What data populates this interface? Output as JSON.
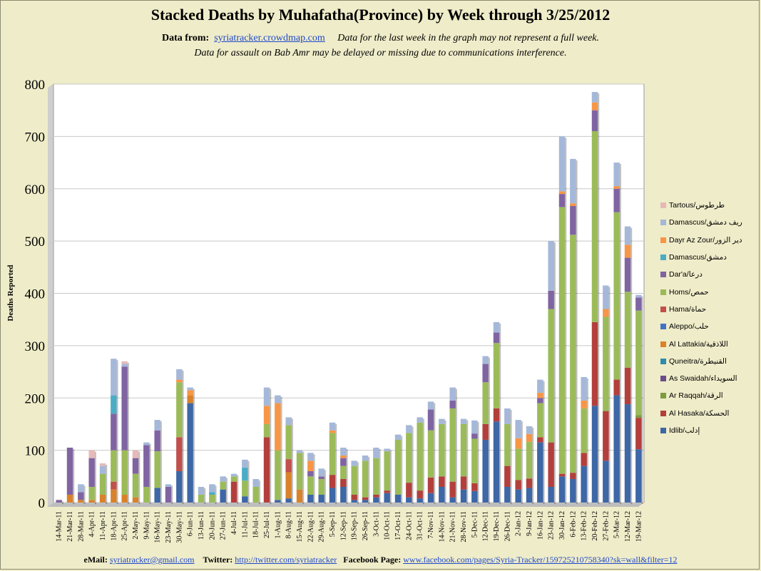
{
  "header": {
    "title": "Stacked Deaths by Muhafatha(Province) by Week through 3/25/2012",
    "data_from_label": "Data from:",
    "data_from_link": "syriatracker.crowdmap.com",
    "note1": "Data for the last week in the graph may not represent a full week.",
    "note2": "Data for assault on Bab Amr may be delayed or missing due to communications interference."
  },
  "footer": {
    "email_label": "eMail:",
    "email": "syriatracker@gmail.com",
    "twitter_label": "Twitter:",
    "twitter": "http://twitter.com/syriatracker",
    "facebook_label": "Facebook  Page:",
    "facebook": "www.facebook.com/pages/Syria-Tracker/159725210758340?sk=wall&filter=12"
  },
  "chart_data": {
    "type": "bar",
    "stacked": true,
    "ylabel": "Deaths  Reported",
    "ylim": [
      0,
      800
    ],
    "yticks": [
      "0",
      "100",
      "200",
      "300",
      "400",
      "500",
      "600",
      "700",
      "800"
    ],
    "legend_position": "right",
    "categories": [
      "14-Mar-11",
      "21-Mar-11",
      "28-Mar-11",
      "4-Apr-11",
      "11-Apr-11",
      "18-Apr-11",
      "25-Apr-11",
      "2-May-11",
      "9-May-11",
      "16-May-11",
      "23-May-11",
      "30-May-11",
      "6-Jun-11",
      "13-Jun-11",
      "20-Jun-11",
      "27-Jun-11",
      "4-Jul-11",
      "11-Jul-11",
      "18-Jul-11",
      "25-Jul-11",
      "1-Aug-11",
      "8-Aug-11",
      "15-Aug-11",
      "22-Aug-11",
      "29-Aug-11",
      "5-Sep-11",
      "12-Sep-11",
      "19-Sep-11",
      "26-Sep-11",
      "3-Oct-11",
      "10-Oct-11",
      "17-Oct-11",
      "24-Oct-11",
      "31-Oct-11",
      "7-Nov-11",
      "14-Nov-11",
      "21-Nov-11",
      "28-Nov-11",
      "5-Dec-11",
      "12-Dec-11",
      "19-Dec-11",
      "26-Dec-11",
      "2-Jan-12",
      "9-Jan-12",
      "16-Jan-12",
      "23-Jan-12",
      "30-Jan-12",
      "6-Feb-12",
      "13-Feb-12",
      "20-Feb-12",
      "27-Feb-12",
      "5-Mar-12",
      "12-Mar-12",
      "19-Mar-12"
    ],
    "series": [
      {
        "name": "Idlib/إدلب",
        "color": "#3d67a6",
        "values": [
          0,
          0,
          0,
          0,
          0,
          0,
          0,
          0,
          0,
          28,
          0,
          60,
          190,
          0,
          0,
          25,
          0,
          12,
          0,
          0,
          5,
          8,
          0,
          15,
          15,
          28,
          30,
          5,
          5,
          10,
          18,
          15,
          10,
          8,
          18,
          30,
          10,
          25,
          22,
          120,
          155,
          30,
          25,
          28,
          115,
          30,
          50,
          45,
          70,
          185,
          80,
          205,
          188,
          102
        ]
      },
      {
        "name": "Al Hasaka/الحسكة",
        "color": "#b33f3c",
        "values": [
          0,
          0,
          0,
          0,
          0,
          0,
          0,
          0,
          0,
          0,
          0,
          0,
          0,
          0,
          0,
          0,
          40,
          0,
          0,
          125,
          0,
          0,
          0,
          0,
          0,
          25,
          15,
          10,
          5,
          5,
          5,
          0,
          28,
          15,
          30,
          20,
          30,
          25,
          15,
          30,
          25,
          40,
          18,
          18,
          10,
          85,
          5,
          12,
          25,
          160,
          95,
          30,
          70,
          60
        ]
      },
      {
        "name": "Ar Raqqah/الرقة",
        "color": "#7f9a40",
        "values": [
          0,
          0,
          0,
          0,
          0,
          0,
          0,
          0,
          0,
          0,
          0,
          0,
          0,
          0,
          0,
          0,
          0,
          0,
          0,
          0,
          0,
          0,
          0,
          0,
          0,
          0,
          0,
          0,
          0,
          0,
          0,
          0,
          0,
          0,
          0,
          0,
          0,
          0,
          0,
          0,
          0,
          0,
          0,
          0,
          0,
          0,
          0,
          0,
          0,
          0,
          0,
          0,
          0,
          5
        ]
      },
      {
        "name": "As Swaidah/السويداء",
        "color": "#6c4c8c",
        "values": [
          0,
          0,
          0,
          0,
          0,
          0,
          0,
          0,
          0,
          0,
          0,
          0,
          0,
          0,
          0,
          0,
          0,
          0,
          0,
          0,
          0,
          0,
          0,
          0,
          0,
          0,
          0,
          0,
          0,
          0,
          0,
          0,
          0,
          0,
          0,
          0,
          0,
          0,
          0,
          0,
          0,
          0,
          0,
          0,
          0,
          0,
          0,
          0,
          0,
          0,
          0,
          0,
          0,
          0
        ]
      },
      {
        "name": "Quneitra/القنيطرة",
        "color": "#2f8bab",
        "values": [
          0,
          0,
          0,
          0,
          0,
          0,
          0,
          0,
          0,
          0,
          0,
          0,
          0,
          0,
          0,
          0,
          0,
          0,
          0,
          0,
          0,
          0,
          0,
          0,
          0,
          0,
          0,
          0,
          0,
          0,
          0,
          0,
          0,
          0,
          0,
          0,
          0,
          0,
          0,
          0,
          0,
          0,
          0,
          0,
          0,
          0,
          0,
          0,
          0,
          0,
          0,
          0,
          0,
          0
        ]
      },
      {
        "name": "Al Lattakia/اللاذقية",
        "color": "#d9822b",
        "values": [
          0,
          15,
          5,
          5,
          15,
          25,
          15,
          10,
          0,
          0,
          0,
          0,
          15,
          0,
          0,
          0,
          0,
          0,
          0,
          0,
          0,
          50,
          25,
          0,
          0,
          0,
          0,
          0,
          0,
          0,
          0,
          0,
          0,
          0,
          0,
          0,
          0,
          0,
          0,
          0,
          0,
          0,
          0,
          0,
          0,
          0,
          0,
          0,
          0,
          0,
          0,
          0,
          0,
          0
        ]
      },
      {
        "name": "Aleppo/حلب",
        "color": "#4473c4",
        "values": [
          0,
          0,
          0,
          0,
          0,
          0,
          0,
          0,
          0,
          0,
          0,
          0,
          0,
          0,
          0,
          0,
          0,
          0,
          0,
          0,
          0,
          0,
          0,
          0,
          0,
          0,
          0,
          0,
          0,
          0,
          0,
          0,
          0,
          0,
          0,
          0,
          0,
          0,
          0,
          0,
          0,
          0,
          0,
          0,
          0,
          0,
          0,
          0,
          0,
          0,
          0,
          0,
          0,
          0
        ]
      },
      {
        "name": "Hama/حماة",
        "color": "#c0504d",
        "values": [
          0,
          0,
          0,
          0,
          0,
          15,
          0,
          0,
          0,
          0,
          0,
          65,
          0,
          0,
          0,
          0,
          0,
          0,
          0,
          0,
          0,
          25,
          0,
          0,
          0,
          0,
          0,
          0,
          0,
          0,
          0,
          0,
          0,
          0,
          0,
          0,
          0,
          0,
          0,
          0,
          0,
          0,
          0,
          0,
          0,
          0,
          0,
          0,
          0,
          0,
          0,
          0,
          0,
          0
        ]
      },
      {
        "name": "Homs/حمص",
        "color": "#9bbb59",
        "values": [
          0,
          0,
          0,
          25,
          40,
          60,
          85,
          45,
          30,
          70,
          0,
          105,
          0,
          15,
          15,
          15,
          10,
          30,
          30,
          25,
          95,
          65,
          70,
          35,
          30,
          80,
          25,
          55,
          70,
          70,
          75,
          105,
          95,
          130,
          90,
          100,
          140,
          100,
          85,
          80,
          125,
          80,
          60,
          70,
          65,
          255,
          510,
          455,
          85,
          365,
          180,
          320,
          145,
          200
        ]
      },
      {
        "name": "Dar'a/درعا",
        "color": "#8064a2",
        "values": [
          5,
          90,
          15,
          55,
          0,
          70,
          160,
          30,
          80,
          40,
          30,
          0,
          0,
          0,
          0,
          0,
          0,
          0,
          0,
          0,
          0,
          0,
          0,
          10,
          5,
          0,
          15,
          0,
          0,
          0,
          0,
          0,
          0,
          0,
          40,
          0,
          15,
          0,
          10,
          35,
          20,
          0,
          0,
          0,
          10,
          35,
          25,
          55,
          0,
          40,
          0,
          45,
          65,
          25
        ]
      },
      {
        "name": "Damascus/دمشق",
        "color": "#4bacc6",
        "values": [
          0,
          0,
          0,
          0,
          0,
          35,
          0,
          0,
          0,
          0,
          0,
          0,
          0,
          0,
          5,
          0,
          0,
          25,
          0,
          0,
          0,
          0,
          0,
          0,
          0,
          0,
          0,
          0,
          0,
          0,
          0,
          0,
          0,
          0,
          0,
          0,
          0,
          0,
          0,
          0,
          0,
          0,
          0,
          0,
          0,
          0,
          0,
          0,
          0,
          0,
          0,
          0,
          0,
          0
        ]
      },
      {
        "name": "Dayr Az Zour/دير الزور",
        "color": "#f79646",
        "values": [
          0,
          0,
          0,
          0,
          0,
          0,
          0,
          0,
          0,
          0,
          0,
          5,
          10,
          0,
          0,
          0,
          0,
          0,
          0,
          35,
          90,
          0,
          0,
          20,
          0,
          5,
          5,
          0,
          0,
          0,
          0,
          0,
          0,
          0,
          0,
          0,
          0,
          0,
          0,
          0,
          0,
          0,
          20,
          15,
          10,
          0,
          5,
          5,
          15,
          15,
          15,
          5,
          25,
          0
        ]
      },
      {
        "name": "Damascus/ريف دمشق",
        "color": "#a5b8d9",
        "values": [
          0,
          0,
          15,
          0,
          15,
          70,
          5,
          0,
          5,
          20,
          5,
          20,
          5,
          15,
          15,
          10,
          5,
          15,
          15,
          35,
          15,
          15,
          5,
          15,
          15,
          15,
          15,
          10,
          10,
          20,
          5,
          10,
          15,
          10,
          15,
          10,
          25,
          10,
          25,
          15,
          20,
          30,
          35,
          15,
          25,
          95,
          105,
          85,
          45,
          20,
          45,
          45,
          35,
          5
        ]
      },
      {
        "name": "Tartous/طرطوس",
        "color": "#e6b9b8",
        "values": [
          0,
          0,
          0,
          15,
          5,
          0,
          5,
          15,
          0,
          0,
          0,
          0,
          0,
          0,
          0,
          0,
          0,
          0,
          0,
          0,
          0,
          0,
          0,
          0,
          0,
          0,
          0,
          0,
          0,
          0,
          0,
          0,
          0,
          0,
          0,
          0,
          0,
          0,
          0,
          0,
          0,
          0,
          0,
          0,
          0,
          0,
          0,
          0,
          0,
          0,
          0,
          0,
          0,
          0
        ]
      }
    ]
  }
}
